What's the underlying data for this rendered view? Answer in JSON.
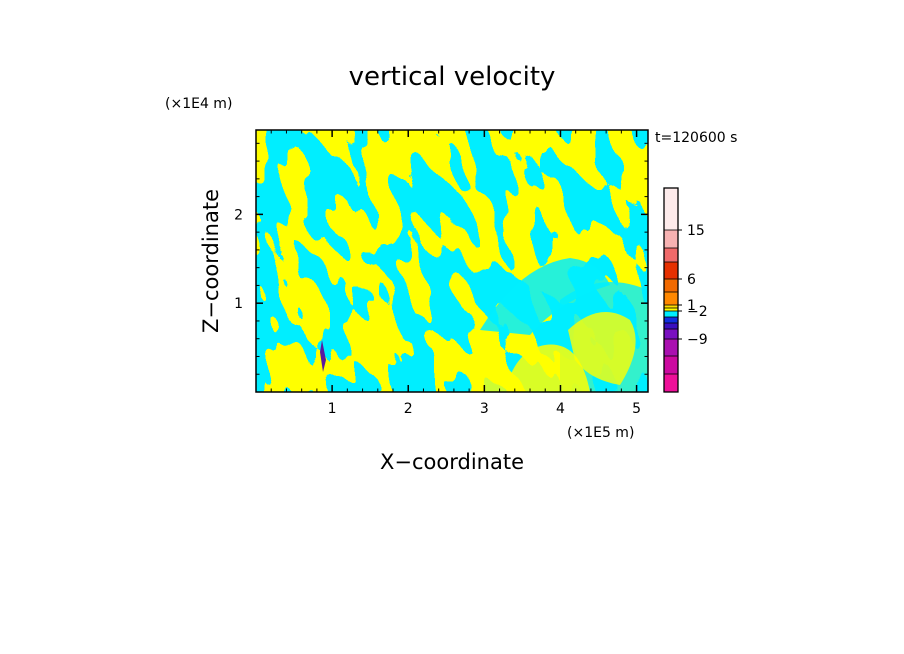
{
  "chart_data": {
    "type": "heatmap",
    "title": "vertical velocity",
    "xlabel": "X−coordinate",
    "ylabel": "Z−coordinate",
    "x_unit": "(×1E5 m)",
    "y_unit": "(×1E4 m)",
    "time_label": "t=120600 s",
    "xlim": [
      0,
      5.15
    ],
    "ylim": [
      0,
      2.95
    ],
    "x_ticks": [
      "1",
      "2",
      "3",
      "4",
      "5"
    ],
    "y_ticks": [
      "1",
      "2"
    ],
    "fill_colors": {
      "dominant_positive": "#ffff00",
      "dominant_negative": "#00eeff",
      "extreme_negative": "#5a1aa0"
    },
    "colorbar": {
      "bands_bottom_to_top": [
        "#ee1099",
        "#cc0aa0",
        "#aa10b0",
        "#7a10c0",
        "#3a10c0",
        "#1030e0",
        "#00eeff",
        "#ffff00",
        "#ffdd00",
        "#ff8800",
        "#f26a00",
        "#e63000",
        "#f06a6a",
        "#f7b2b2",
        "#fdebeb"
      ],
      "tick_labels_bottom_to_top": [
        "−9",
        "−2",
        "1",
        "6",
        "15"
      ]
    }
  }
}
